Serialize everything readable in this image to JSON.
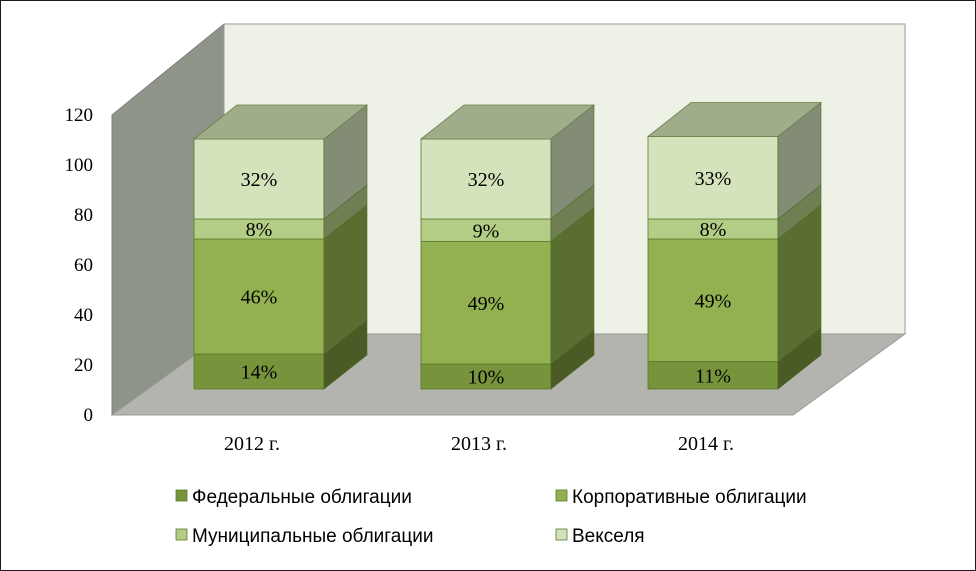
{
  "chart_data": {
    "type": "bar",
    "stacked": true,
    "three_d": true,
    "categories": [
      "2012 г.",
      "2013 г.",
      "2014 г."
    ],
    "series": [
      {
        "name": "Федеральные облигации",
        "values": [
          14,
          10,
          11
        ],
        "labels": [
          "14%",
          "10%",
          "11%"
        ],
        "color": "#77933c"
      },
      {
        "name": "Корпоративные облигации",
        "values": [
          46,
          49,
          49
        ],
        "labels": [
          "46%",
          "49%",
          "49%"
        ],
        "color": "#93b150"
      },
      {
        "name": "Муниципальные  облигации",
        "values": [
          8,
          9,
          8
        ],
        "labels": [
          "8%",
          "9%",
          "8%"
        ],
        "color": "#b4cd86"
      },
      {
        "name": "Векселя",
        "values": [
          32,
          32,
          33
        ],
        "labels": [
          "32%",
          "32%",
          "33%"
        ],
        "color": "#d4e3bc"
      }
    ],
    "y_ticks": [
      "0",
      "20",
      "40",
      "60",
      "80",
      "100",
      "120"
    ],
    "ylim": [
      0,
      120
    ],
    "legend_position": "bottom",
    "colors": {
      "back_wall": "#eef2e6",
      "side_wall": "#8e9488",
      "floor": "#b3b4ae",
      "frame": "#1a1a1a"
    }
  }
}
